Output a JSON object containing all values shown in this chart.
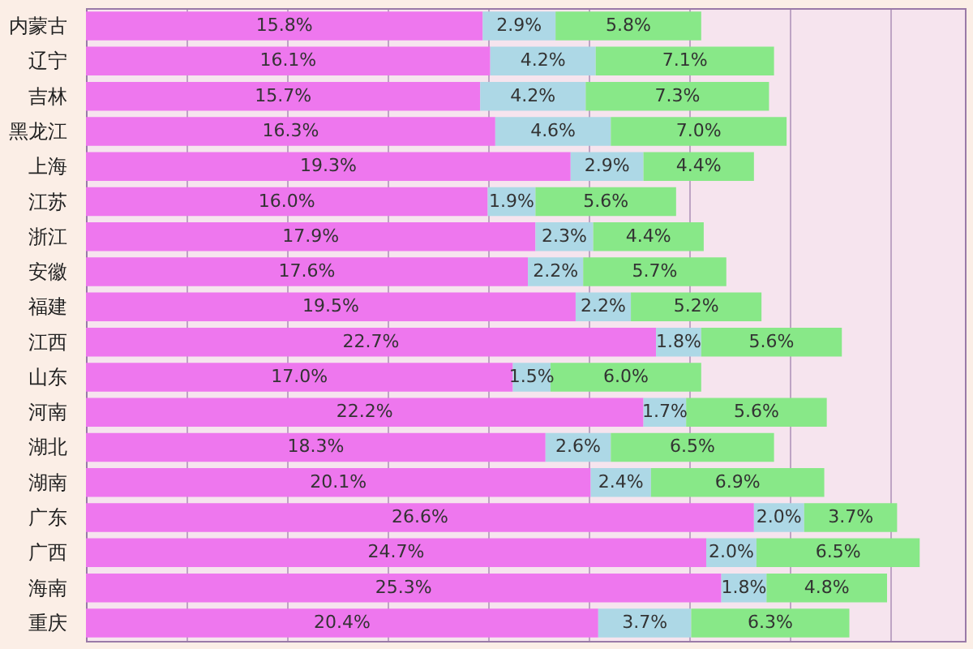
{
  "chart_data": {
    "type": "bar",
    "orientation": "horizontal",
    "stacked": true,
    "categories": [
      "内蒙古",
      "辽宁",
      "吉林",
      "黑龙江",
      "上海",
      "江苏",
      "浙江",
      "安徽",
      "福建",
      "江西",
      "山东",
      "河南",
      "湖北",
      "湖南",
      "广东",
      "广西",
      "海南",
      "重庆"
    ],
    "series": [
      {
        "color": "#ee77ee",
        "values": [
          15.8,
          16.1,
          15.7,
          16.3,
          19.3,
          16.0,
          17.9,
          17.6,
          19.5,
          22.7,
          17.0,
          22.2,
          18.3,
          20.1,
          26.6,
          24.7,
          25.3,
          20.4
        ],
        "value_labels": [
          "15.8%",
          "16.1%",
          "15.7%",
          "16.3%",
          "19.3%",
          "16.0%",
          "17.9%",
          "17.6%",
          "19.5%",
          "22.7%",
          "17.0%",
          "22.2%",
          "18.3%",
          "20.1%",
          "26.6%",
          "24.7%",
          "25.3%",
          "20.4%"
        ]
      },
      {
        "color": "#add8e6",
        "values": [
          2.9,
          4.2,
          4.2,
          4.6,
          2.9,
          1.9,
          2.3,
          2.2,
          2.2,
          1.8,
          1.5,
          1.7,
          2.6,
          2.4,
          2.0,
          2.0,
          1.8,
          3.7
        ],
        "value_labels": [
          "2.9%",
          "4.2%",
          "4.2%",
          "4.6%",
          "2.9%",
          "1.9%",
          "2.3%",
          "2.2%",
          "2.2%",
          "1.8%",
          "1.5%",
          "1.7%",
          "2.6%",
          "2.4%",
          "2.0%",
          "2.0%",
          "1.8%",
          "3.7%"
        ]
      },
      {
        "color": "#88e888",
        "values": [
          5.8,
          7.1,
          7.3,
          7.0,
          4.4,
          5.6,
          4.4,
          5.7,
          5.2,
          5.6,
          6.0,
          5.6,
          6.5,
          6.9,
          3.7,
          6.5,
          4.8,
          6.3
        ],
        "value_labels": [
          "5.8%",
          "7.1%",
          "7.3%",
          "7.0%",
          "4.4%",
          "5.6%",
          "4.4%",
          "5.7%",
          "5.2%",
          "5.6%",
          "6.0%",
          "5.6%",
          "6.5%",
          "6.9%",
          "3.7%",
          "6.5%",
          "4.8%",
          "6.3%"
        ]
      }
    ],
    "xlim": [
      0,
      35
    ],
    "xticks": [
      {
        "value": 0,
        "label": null
      },
      {
        "value": 4,
        "label": null
      },
      {
        "value": 8,
        "label": null
      },
      {
        "value": 12,
        "label": null
      },
      {
        "value": 16,
        "label": null
      },
      {
        "value": 20,
        "label": null
      },
      {
        "value": 24,
        "label": null
      },
      {
        "value": 28,
        "label": null
      },
      {
        "value": 32,
        "label": null
      }
    ],
    "grid": "x",
    "tick_labels": "y"
  }
}
